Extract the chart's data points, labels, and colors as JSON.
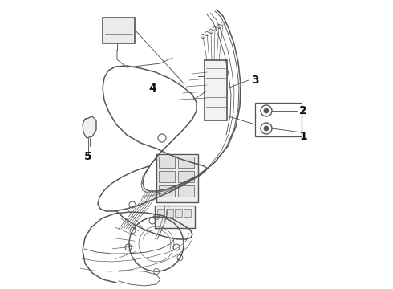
{
  "bg_color": "#ffffff",
  "line_color": "#555555",
  "text_color": "#111111",
  "label_fontsize": 10,
  "lw_main": 1.1,
  "lw_thin": 0.65,
  "lw_xtra": 0.45
}
